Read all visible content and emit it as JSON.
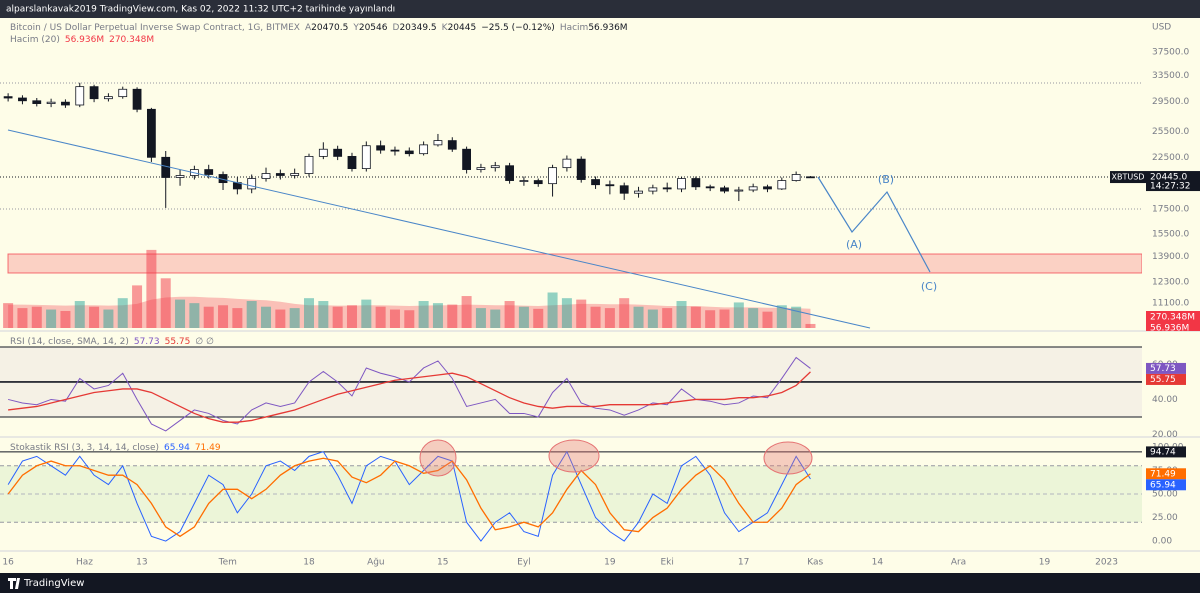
{
  "header": "alparslankavak2019 TradingView.com, Kas 02, 2022 11:32 UTC+2 tarihinde yayınlandı",
  "footer": "TradingView",
  "chart_data": [
    {
      "type": "candlestick",
      "title": "Bitcoin / US Dollar Perpetual Inverse Swap Contract, 1G, BITMEX",
      "symbol": "XBTUSD",
      "currency": "USD",
      "ohlc_labels": [
        "A",
        "Y",
        "D",
        "K"
      ],
      "change": "−25.5 (−0.12%)",
      "price_label": "20445.0",
      "countdown": "14:27:32",
      "colors": {
        "up": "#ffffff",
        "down": "#131722"
      },
      "log_scale": true,
      "grid": false,
      "x": [
        0,
        3,
        6,
        9,
        12,
        15,
        18,
        21,
        24,
        27,
        30,
        33,
        36,
        39,
        42,
        45,
        48,
        51,
        54,
        57,
        60,
        63,
        66,
        69,
        72,
        75,
        78,
        81,
        84,
        87,
        90,
        93,
        96,
        99,
        102,
        105,
        108,
        111,
        114,
        117,
        120,
        123,
        126,
        129,
        132,
        135,
        138,
        141,
        144,
        147,
        150,
        153,
        156,
        159,
        162,
        165,
        168
      ],
      "open": [
        30200,
        30000,
        29600,
        29200,
        29400,
        29000,
        31700,
        29900,
        30200,
        31300,
        28400,
        22500,
        20400,
        20600,
        21200,
        20700,
        19900,
        19300,
        20300,
        20800,
        20600,
        20800,
        22600,
        23400,
        22600,
        21300,
        23800,
        23300,
        23200,
        22900,
        23900,
        24400,
        23400,
        21200,
        21400,
        21600,
        20100,
        20100,
        19800,
        21400,
        22300,
        20200,
        19700,
        19600,
        18900,
        19100,
        19400,
        19300,
        20300,
        19500,
        19400,
        19100,
        19200,
        19500,
        19300,
        20100,
        20470.5
      ],
      "high": [
        30700,
        30400,
        30000,
        29900,
        29800,
        32300,
        32000,
        30700,
        31700,
        31600,
        28600,
        23200,
        21200,
        21600,
        21700,
        21000,
        20400,
        20700,
        21400,
        21200,
        21300,
        22900,
        24200,
        23800,
        23000,
        24300,
        24400,
        23700,
        23600,
        24300,
        25200,
        24800,
        23700,
        21800,
        22000,
        21900,
        20500,
        20300,
        21700,
        22700,
        22600,
        20500,
        20100,
        19900,
        19500,
        19700,
        19900,
        20500,
        20500,
        19700,
        19600,
        19500,
        19800,
        19700,
        20400,
        21000,
        20546
      ],
      "low": [
        29500,
        29100,
        28800,
        28700,
        28600,
        28700,
        29400,
        29500,
        29900,
        28000,
        22000,
        17600,
        19600,
        20200,
        20300,
        19200,
        18800,
        18900,
        20000,
        20200,
        20300,
        20500,
        22300,
        22200,
        21000,
        21000,
        22900,
        22700,
        22600,
        22700,
        23700,
        23100,
        20800,
        20900,
        21000,
        19800,
        19600,
        19500,
        18600,
        21000,
        19900,
        19300,
        18800,
        18300,
        18500,
        18800,
        19000,
        19000,
        19200,
        19100,
        18900,
        18200,
        19000,
        19000,
        19200,
        20000,
        20349.5
      ],
      "close": [
        30000,
        29600,
        29200,
        29400,
        29000,
        31700,
        29900,
        30200,
        31300,
        28400,
        22500,
        20400,
        20600,
        21200,
        20700,
        19900,
        19300,
        20300,
        20800,
        20600,
        20800,
        22600,
        23400,
        22600,
        21300,
        23800,
        23300,
        23200,
        22900,
        23900,
        24400,
        23400,
        21200,
        21400,
        21600,
        20100,
        20100,
        19800,
        21400,
        22300,
        20200,
        19700,
        19600,
        18900,
        19100,
        19400,
        19300,
        20300,
        19500,
        19400,
        19100,
        19200,
        19500,
        19300,
        20100,
        20700,
        20445
      ],
      "ylim": [
        9830,
        43800
      ],
      "yticks": [
        {
          "value": 37500,
          "label": "37500.0"
        },
        {
          "value": 33500,
          "label": "33500.0"
        },
        {
          "value": 29500,
          "label": "29500.0"
        },
        {
          "value": 25500,
          "label": "25500.0"
        },
        {
          "value": 22500,
          "label": "22500.0"
        },
        {
          "value": 20000,
          "label": "20000.0"
        },
        {
          "value": 17500,
          "label": "17500.0"
        },
        {
          "value": 15500,
          "label": "15500.0"
        },
        {
          "value": 13900,
          "label": "13900.0"
        },
        {
          "value": 12300,
          "label": "12300.0"
        },
        {
          "value": 11100,
          "label": "11100.0"
        }
      ],
      "xlim": [
        -1.7,
        237
      ],
      "xticks": [
        {
          "value": 0,
          "label": "16"
        },
        {
          "value": 16,
          "label": "Haz"
        },
        {
          "value": 28,
          "label": "13"
        },
        {
          "value": 46,
          "label": "Tem"
        },
        {
          "value": 63,
          "label": "18"
        },
        {
          "value": 77,
          "label": "Ağu"
        },
        {
          "value": 91,
          "label": "15"
        },
        {
          "value": 108,
          "label": "Eyl"
        },
        {
          "value": 126,
          "label": "19"
        },
        {
          "value": 138,
          "label": "Eki"
        },
        {
          "value": 154,
          "label": "17"
        },
        {
          "value": 169,
          "label": "Kas"
        },
        {
          "value": 182,
          "label": "14"
        },
        {
          "value": 199,
          "label": "Ara"
        },
        {
          "value": 217,
          "label": "19"
        },
        {
          "value": 230,
          "label": "2023"
        }
      ],
      "volume": {
        "title": "Hacim",
        "ma_title": "Hacim (20)",
        "up_color": "rgba(38,166,154,0.5)",
        "down_color": "rgba(242,54,69,0.5)",
        "values": [
          350,
          280,
          300,
          260,
          240,
          380,
          300,
          260,
          420,
          600,
          1100,
          700,
          400,
          350,
          300,
          320,
          280,
          380,
          300,
          260,
          280,
          420,
          380,
          300,
          320,
          400,
          300,
          260,
          250,
          380,
          350,
          330,
          450,
          280,
          260,
          380,
          300,
          270,
          500,
          420,
          400,
          300,
          280,
          420,
          300,
          260,
          280,
          380,
          300,
          250,
          260,
          360,
          280,
          230,
          320,
          300,
          56.936
        ],
        "last_label": "56.936M",
        "ma_values": [
          330,
          330,
          325,
          320,
          315,
          320,
          320,
          315,
          320,
          340,
          400,
          430,
          440,
          440,
          430,
          425,
          410,
          400,
          390,
          370,
          340,
          320,
          320,
          315,
          315,
          320,
          320,
          315,
          310,
          315,
          320,
          320,
          330,
          325,
          320,
          320,
          315,
          310,
          320,
          330,
          340,
          340,
          335,
          335,
          330,
          320,
          310,
          310,
          310,
          300,
          290,
          290,
          290,
          285,
          285,
          280,
          270.348
        ],
        "ma_label": "270.348M",
        "ma_color": "rgba(242,54,69,0.3)"
      },
      "annotations": [
        "(A)",
        "(B)",
        "(C)"
      ]
    },
    {
      "type": "line",
      "title": "RSI (14, close, SMA, 14, 2)",
      "suffix": "∅ ∅",
      "series": [
        {
          "color": "#7e57c2",
          "values": [
            40,
            38,
            37,
            40,
            39,
            52,
            46,
            48,
            55,
            40,
            26,
            22,
            28,
            34,
            32,
            28,
            26,
            34,
            38,
            36,
            38,
            50,
            56,
            50,
            42,
            58,
            55,
            53,
            50,
            58,
            62,
            52,
            36,
            38,
            40,
            32,
            32,
            30,
            44,
            52,
            38,
            35,
            34,
            31,
            34,
            38,
            37,
            46,
            40,
            39,
            37,
            38,
            42,
            41,
            52,
            64,
            57.73
          ]
        },
        {
          "color": "#e53935",
          "values": [
            34,
            35,
            36,
            38,
            40,
            42,
            44,
            45,
            46,
            46,
            44,
            40,
            36,
            32,
            29,
            27,
            27,
            28,
            30,
            32,
            34,
            37,
            40,
            43,
            45,
            47,
            49,
            51,
            52,
            53,
            54,
            55,
            53,
            49,
            45,
            41,
            38,
            36,
            35,
            36,
            36,
            36,
            37,
            37,
            37,
            37,
            38,
            39,
            40,
            40,
            40,
            41,
            41,
            42,
            44,
            48,
            55.75
          ]
        }
      ],
      "ylim": [
        19.1,
        78
      ],
      "yticks": [
        {
          "value": 60,
          "label": "60.00"
        },
        {
          "value": 40,
          "label": "40.00"
        },
        {
          "value": 20,
          "label": "20.00"
        }
      ],
      "band": [
        30,
        70
      ],
      "midline": 50
    },
    {
      "type": "line",
      "title": "Stokastik RSI (3, 3, 14, 14, close)",
      "series": [
        {
          "color": "#2962ff",
          "values": [
            60,
            85,
            90,
            80,
            70,
            90,
            70,
            60,
            80,
            40,
            5,
            0,
            10,
            40,
            70,
            60,
            30,
            50,
            80,
            85,
            75,
            90,
            95,
            70,
            40,
            80,
            90,
            85,
            60,
            75,
            90,
            85,
            20,
            0,
            20,
            30,
            10,
            5,
            70,
            95,
            60,
            25,
            10,
            0,
            20,
            50,
            40,
            80,
            90,
            70,
            30,
            10,
            20,
            30,
            60,
            90,
            65.94
          ]
        },
        {
          "color": "#ff6d00",
          "values": [
            50,
            70,
            80,
            85,
            80,
            80,
            75,
            70,
            70,
            60,
            40,
            15,
            5,
            15,
            40,
            55,
            55,
            45,
            55,
            70,
            80,
            85,
            88,
            85,
            68,
            62,
            70,
            85,
            80,
            72,
            75,
            85,
            65,
            35,
            12,
            15,
            20,
            15,
            30,
            55,
            75,
            60,
            30,
            12,
            10,
            25,
            35,
            55,
            70,
            80,
            65,
            40,
            20,
            20,
            35,
            60,
            71.49
          ]
        }
      ],
      "ylim": [
        -7.4,
        107.4
      ],
      "yticks": [
        {
          "value": 100,
          "label": "100.00"
        },
        {
          "value": 75,
          "label": "75.00"
        },
        {
          "value": 50,
          "label": "50.00"
        },
        {
          "value": 25,
          "label": "25.00"
        },
        {
          "value": 0,
          "label": "0.00"
        }
      ],
      "band": [
        20,
        80
      ],
      "midline": 50,
      "hline": 94.74
    }
  ]
}
